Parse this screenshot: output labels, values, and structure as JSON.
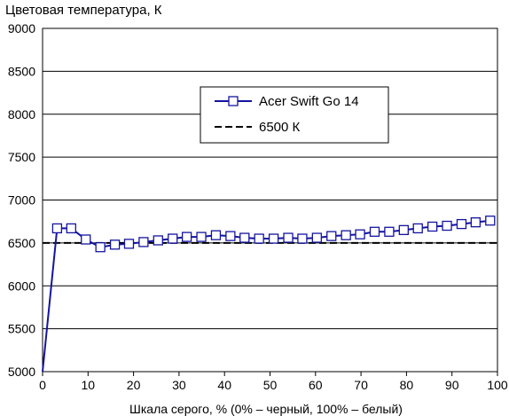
{
  "chart_data": {
    "type": "line",
    "title": "",
    "ylabel": "Цветовая температура, К",
    "xlabel": "Шкала серого, % (0% – черный, 100% – белый)",
    "xlim": [
      0,
      100
    ],
    "ylim": [
      5000,
      9000
    ],
    "xticks": [
      0,
      10,
      20,
      30,
      40,
      50,
      60,
      70,
      80,
      90,
      100
    ],
    "yticks": [
      5000,
      5500,
      6000,
      6500,
      7000,
      7500,
      8000,
      8500,
      9000
    ],
    "grid": "horizontal",
    "legend_position": "upper-right-inner",
    "series": [
      {
        "name": "Acer Swift Go 14",
        "color": "#1414a0",
        "marker": "square-open",
        "x": [
          0,
          3.2,
          6.3,
          9.5,
          12.7,
          15.9,
          19.0,
          22.2,
          25.4,
          28.6,
          31.7,
          34.9,
          38.1,
          41.3,
          44.4,
          47.6,
          50.8,
          54.0,
          57.1,
          60.3,
          63.5,
          66.7,
          69.8,
          73.0,
          76.2,
          79.4,
          82.5,
          85.7,
          88.9,
          92.1,
          95.2,
          98.4
        ],
        "values": [
          5000,
          6670,
          6670,
          6540,
          6450,
          6480,
          6490,
          6510,
          6530,
          6550,
          6570,
          6570,
          6590,
          6580,
          6560,
          6550,
          6550,
          6560,
          6550,
          6560,
          6580,
          6590,
          6600,
          6630,
          6630,
          6650,
          6670,
          6690,
          6700,
          6720,
          6740,
          6760
        ]
      },
      {
        "name": "6500 К",
        "color": "#000000",
        "style": "dashed",
        "x": [
          0,
          100
        ],
        "values": [
          6500,
          6500
        ]
      }
    ]
  }
}
